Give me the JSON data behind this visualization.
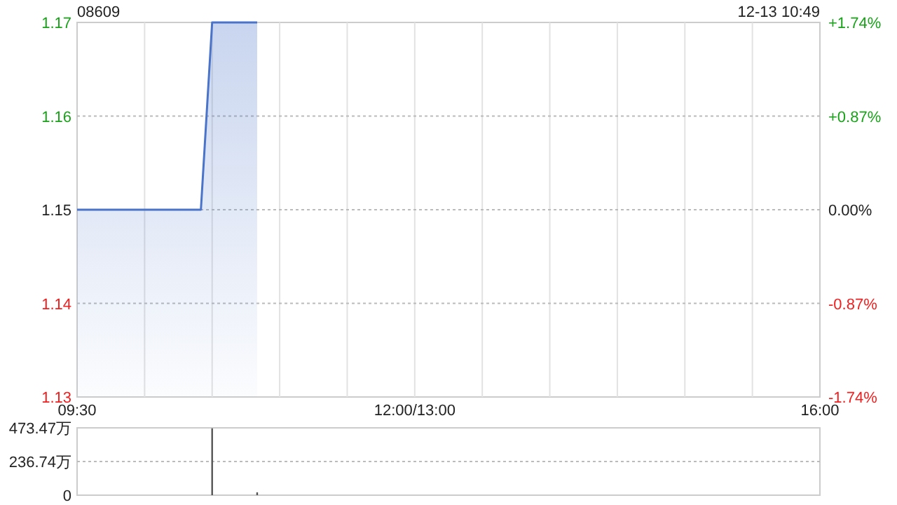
{
  "chart_data": [
    {
      "type": "area",
      "title": "08609",
      "subtitle": "12-13 10:49",
      "categories": [
        "09:30",
        null,
        null,
        null,
        null,
        null,
        null,
        null,
        null,
        null,
        null,
        null,
        null,
        null,
        null,
        null,
        null,
        null,
        null,
        null,
        null,
        null,
        null,
        null,
        null,
        null,
        null,
        null,
        null,
        null,
        "12:00/13:00",
        null,
        null,
        null,
        null,
        null,
        null,
        null,
        null,
        null,
        null,
        null,
        null,
        null,
        null,
        null,
        null,
        null,
        null,
        null,
        null,
        null,
        null,
        null,
        null,
        null,
        null,
        null,
        null,
        null,
        null,
        null,
        null,
        null,
        null,
        null,
        "16:00"
      ],
      "series": [
        {
          "color": "#4a74c9",
          "values": [
            1.15,
            1.15,
            1.15,
            1.15,
            1.15,
            1.15,
            1.15,
            1.15,
            1.15,
            1.15,
            1.15,
            1.15,
            1.17,
            1.17,
            1.17,
            1.17,
            1.17,
            null,
            null,
            null,
            null,
            null,
            null,
            null,
            null,
            null,
            null,
            null,
            null,
            null,
            null,
            null,
            null,
            null,
            null,
            null,
            null,
            null,
            null,
            null,
            null,
            null,
            null,
            null,
            null,
            null,
            null,
            null,
            null,
            null,
            null,
            null,
            null,
            null,
            null,
            null,
            null,
            null,
            null,
            null,
            null,
            null,
            null,
            null,
            null,
            null,
            null
          ]
        }
      ],
      "ylim": [
        1.13,
        1.17
      ],
      "yticks": [
        {
          "value": 1.13,
          "label": "1.13"
        },
        {
          "value": 1.14,
          "label": "1.14"
        },
        {
          "value": 1.15,
          "label": "1.15"
        },
        {
          "value": 1.16,
          "label": "1.16"
        },
        {
          "value": 1.17,
          "label": "1.17"
        }
      ],
      "y2lim": [
        -1.74,
        1.74
      ],
      "y2ticks": [
        {
          "value": -1.74,
          "label": "-1.74%"
        },
        {
          "value": -0.87,
          "label": "-0.87%"
        },
        {
          "value": 0,
          "label": "0.00%"
        },
        {
          "value": 0.87,
          "label": "+0.87%"
        },
        {
          "value": 1.74,
          "label": "+1.74%"
        }
      ],
      "grid": true
    },
    {
      "type": "bar",
      "categories": [
        null,
        null,
        null,
        null,
        null,
        null,
        null,
        null,
        null,
        null,
        null,
        null,
        null,
        null,
        null,
        null,
        null,
        null,
        null,
        null,
        null,
        null,
        null,
        null,
        null,
        null,
        null,
        null,
        null,
        null,
        null,
        null,
        null,
        null,
        null,
        null,
        null,
        null,
        null,
        null,
        null,
        null,
        null,
        null,
        null,
        null,
        null,
        null,
        null,
        null,
        null,
        null,
        null,
        null,
        null,
        null,
        null,
        null,
        null,
        null,
        null,
        null,
        null,
        null,
        null,
        null,
        null
      ],
      "series": [
        {
          "color": "#555555",
          "values": [
            null,
            null,
            null,
            null,
            null,
            null,
            null,
            null,
            null,
            null,
            null,
            null,
            470,
            null,
            null,
            null,
            20,
            null,
            null,
            null,
            null,
            null,
            null,
            null,
            null,
            null,
            null,
            null,
            null,
            null,
            null,
            null,
            null,
            null,
            null,
            null,
            null,
            null,
            null,
            null,
            null,
            null,
            null,
            null,
            null,
            null,
            null,
            null,
            null,
            null,
            null,
            null,
            null,
            null,
            null,
            null,
            null,
            null,
            null,
            null,
            null,
            null,
            null,
            null,
            null,
            null,
            null
          ]
        }
      ],
      "ylim": [
        0,
        473.47
      ],
      "yticks": [
        0,
        {
          "value": 236.74,
          "label": "236.74万"
        },
        {
          "value": 473.47,
          "label": "473.47万"
        }
      ],
      "tick_labels": "y",
      "grid": "y"
    }
  ]
}
